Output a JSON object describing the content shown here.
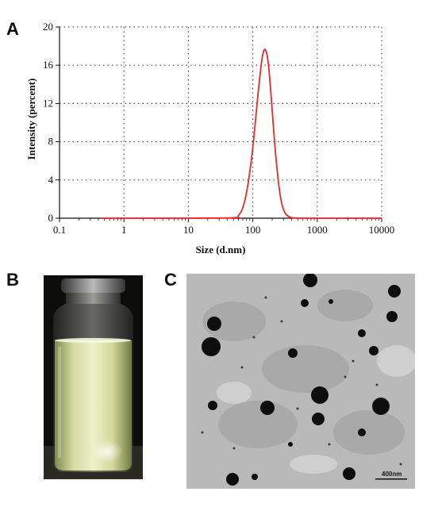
{
  "panels": {
    "a_label": "A",
    "b_label": "B",
    "c_label": "C"
  },
  "chart_data": {
    "type": "line",
    "xlabel": "Size (d.nm)",
    "ylabel": "Intensity (percent)",
    "x_scale": "log",
    "xlim": [
      0.1,
      10000
    ],
    "ylim": [
      0,
      20
    ],
    "x_ticks": [
      "0.1",
      "1",
      "10",
      "100",
      "1000",
      "10000"
    ],
    "y_ticks": [
      "0",
      "4",
      "8",
      "12",
      "16",
      "20"
    ],
    "grid": true,
    "series": [
      {
        "color": "#e8282b",
        "x": [
          0.45,
          1,
          10,
          50,
          60,
          70,
          80,
          90,
          100,
          110,
          120,
          130,
          140,
          150,
          160,
          170,
          180,
          200,
          220,
          250,
          280,
          320,
          380,
          450,
          550,
          700,
          1000,
          10000
        ],
        "y": [
          0,
          0,
          0,
          0.05,
          0.3,
          1.1,
          2.7,
          4.9,
          7.4,
          10.2,
          12.9,
          15.1,
          16.8,
          17.6,
          17.5,
          16.7,
          15.2,
          11.3,
          7.6,
          3.8,
          1.6,
          0.5,
          0.1,
          0.02,
          0,
          0,
          0,
          0
        ]
      }
    ]
  },
  "tem": {
    "scale_bar_label": "400nm"
  }
}
